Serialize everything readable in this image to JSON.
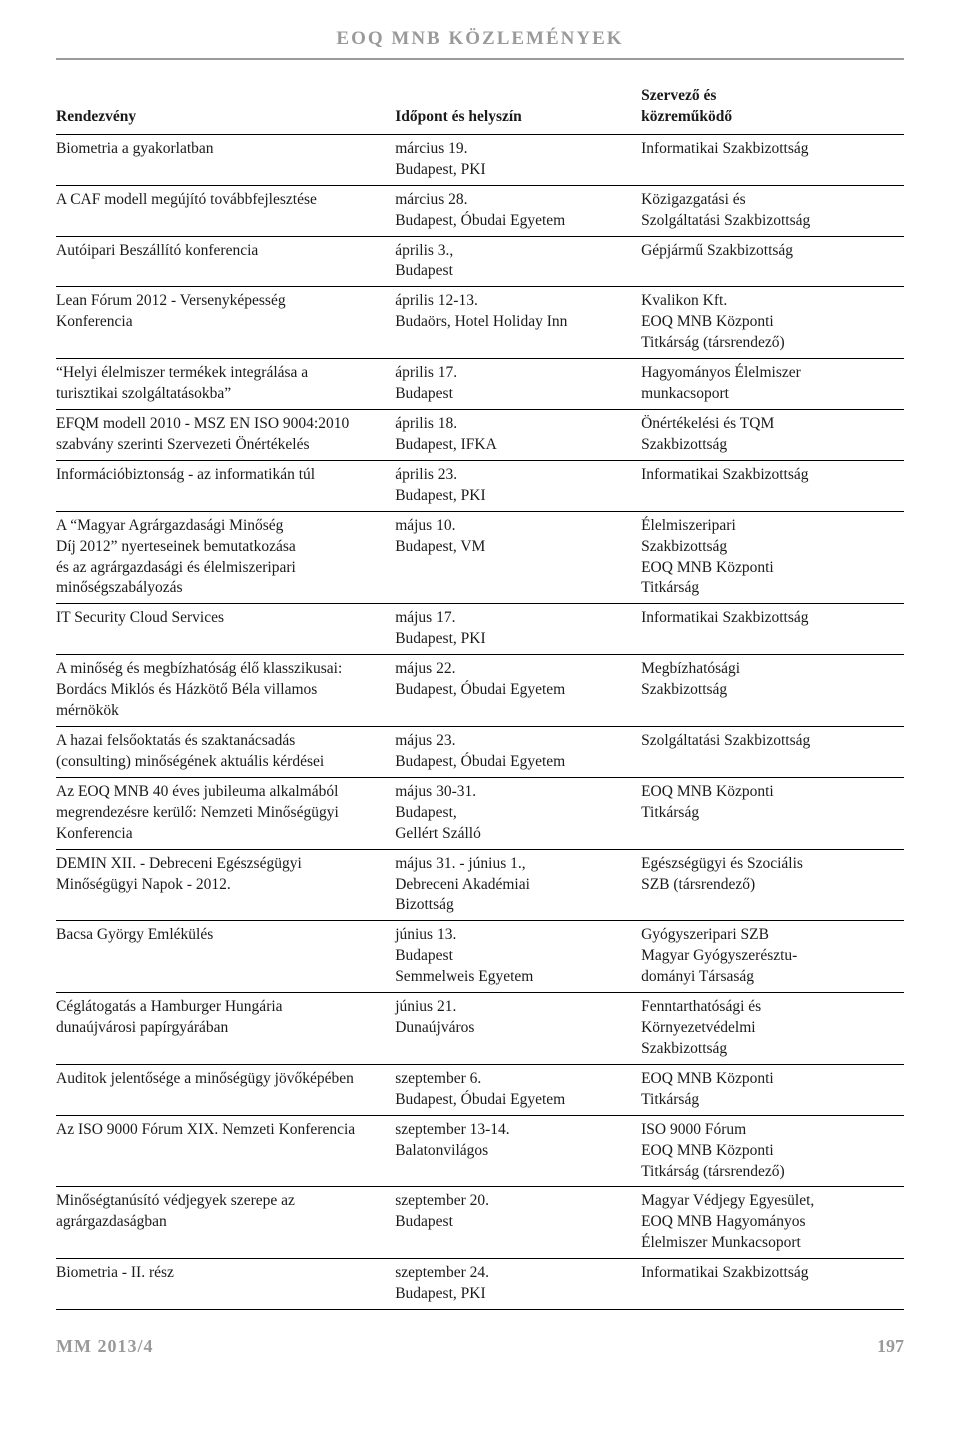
{
  "header": {
    "title": "EOQ MNB KÖZLEMÉNYEK"
  },
  "table": {
    "columns": [
      "Rendezvény",
      "Időpont és helyszín",
      "Szervező és\nközreműködő"
    ],
    "col_widths_pct": [
      40,
      29,
      31
    ],
    "border_color": "#000000",
    "font_size_pt": 11.5,
    "rows": [
      {
        "event": "Biometria a gyakorlatban",
        "when_where": "március 19.\nBudapest, PKI",
        "org": "Informatikai Szakbizottság"
      },
      {
        "event": "A CAF modell megújító továbbfejlesztése",
        "when_where": "március 28.\nBudapest, Óbudai Egyetem",
        "org": "Közigazgatási és\nSzolgáltatási Szakbizottság"
      },
      {
        "event": "Autóipari Beszállító konferencia",
        "when_where": "április 3.,\nBudapest",
        "org": "Gépjármű Szakbizottság"
      },
      {
        "event": "Lean Fórum 2012 - Versenyképesség\nKonferencia",
        "when_where": "április 12-13.\nBudaörs, Hotel Holiday Inn",
        "org": "Kvalikon Kft.\nEOQ MNB Központi\nTitkárság (társrendező)"
      },
      {
        "event": "“Helyi élelmiszer termékek integrálása a\nturisztikai szolgáltatásokba”",
        "when_where": "április 17.\nBudapest",
        "org": "Hagyományos Élelmiszer\nmunkacsoport"
      },
      {
        "event": "EFQM modell 2010 - MSZ EN ISO 9004:2010\nszabvány szerinti Szervezeti Önértékelés",
        "when_where": "április 18.\nBudapest, IFKA",
        "org": "Önértékelési és TQM\nSzakbizottság"
      },
      {
        "event": "Információbiztonság - az informatikán túl",
        "when_where": "április 23.\nBudapest, PKI",
        "org": "Informatikai Szakbizottság"
      },
      {
        "event": "A “Magyar Agrárgazdasági Minőség\nDíj 2012” nyerteseinek bemutatkozása\nés az agrárgazdasági és élelmiszeripari\nminőségszabályozás",
        "when_where": "május 10.\nBudapest, VM",
        "org": "Élelmiszeripari\nSzakbizottság\nEOQ MNB Központi\nTitkárság"
      },
      {
        "event": "IT Security Cloud Services",
        "when_where": "május 17.\nBudapest, PKI",
        "org": "Informatikai Szakbizottság"
      },
      {
        "event": "A minőség és megbízhatóság élő klasszikusai:\nBordács Miklós és Házkötő Béla villamos\nmérnökök",
        "when_where": "május 22.\nBudapest, Óbudai Egyetem",
        "org": "Megbízhatósági\nSzakbizottság"
      },
      {
        "event": "A hazai felsőoktatás és szaktanácsadás\n(consulting) minőségének aktuális kérdései",
        "when_where": "május 23.\nBudapest, Óbudai Egyetem",
        "org": "Szolgáltatási Szakbizottság"
      },
      {
        "event": "Az EOQ MNB 40 éves jubileuma alkalmából\nmegrendezésre kerülő: Nemzeti Minőségügyi\nKonferencia",
        "when_where": "május 30-31.\nBudapest,\nGellért Szálló",
        "org": "EOQ MNB Központi\nTitkárság"
      },
      {
        "event": "DEMIN XII. - Debreceni Egészségügyi\nMinőségügyi Napok - 2012.",
        "when_where": "május 31. - június 1.,\nDebreceni Akadémiai\nBizottság",
        "org": "Egészségügyi és Szociális\nSZB (társrendező)"
      },
      {
        "event": "Bacsa György Emlékülés",
        "when_where": "június 13.\nBudapest\nSemmelweis Egyetem",
        "org": "Gyógyszeripari SZB\nMagyar Gyógyszerésztu-\ndományi Társaság"
      },
      {
        "event": "Céglátogatás a Hamburger Hungária\ndunaújvárosi papírgyárában",
        "when_where": "június 21.\nDunaújváros",
        "org": "Fenntarthatósági és\nKörnyezetvédelmi\nSzakbizottság"
      },
      {
        "event": "Auditok jelentősége a minőségügy jövőképében",
        "when_where": "szeptember 6.\nBudapest, Óbudai Egyetem",
        "org": "EOQ MNB Központi\nTitkárság"
      },
      {
        "event": "Az ISO 9000 Fórum XIX. Nemzeti Konferencia",
        "when_where": "szeptember 13-14.\nBalatonvilágos",
        "org": "ISO 9000 Fórum\nEOQ MNB Központi\nTitkárság (társrendező)"
      },
      {
        "event": "Minőségtanúsító védjegyek szerepe az\nagrárgazdaságban",
        "when_where": "szeptember 20.\nBudapest",
        "org": "Magyar Védjegy Egyesület,\nEOQ MNB Hagyományos\nÉlelmiszer Munkacsoport"
      },
      {
        "event": "Biometria - II. rész",
        "when_where": "szeptember 24.\nBudapest, PKI",
        "org": "Informatikai Szakbizottság"
      }
    ]
  },
  "footer": {
    "issue": "MM 2013/4",
    "page": "197"
  },
  "colors": {
    "text": "#1a1a1a",
    "muted": "#9a9a9a",
    "background": "#ffffff",
    "rule": "#000000",
    "header_rule": "#9a9a9a"
  }
}
